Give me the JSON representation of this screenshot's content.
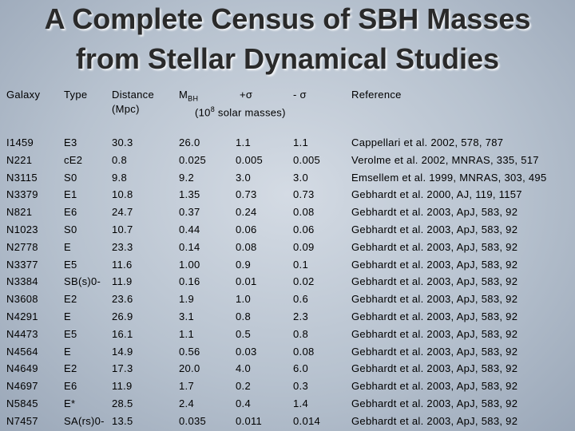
{
  "title": {
    "line1": "A Complete Census of SBH Masses",
    "line2": "from Stellar Dynamical Studies"
  },
  "header": {
    "galaxy": "Galaxy",
    "type": "Type",
    "distance": "Distance",
    "distance_unit": "(Mpc)",
    "mass": "M",
    "mass_sub": "BH",
    "plus_sigma": "+σ",
    "minus_sigma": "- σ",
    "unit_open": "(10",
    "unit_exp": "8",
    "unit_rest": " solar masses)",
    "reference": "Reference"
  },
  "table": {
    "rows": [
      [
        "I1459",
        "E3",
        "30.3",
        "26.0",
        "1.1",
        "1.1",
        "Cappellari et al. 2002, 578, 787"
      ],
      [
        "N221",
        "cE2",
        "0.8",
        "0.025",
        "0.005",
        "0.005",
        "Verolme et al. 2002, MNRAS, 335, 517"
      ],
      [
        "N3115",
        "S0",
        "9.8",
        "9.2",
        "3.0",
        "3.0",
        "Emsellem et al. 1999, MNRAS, 303, 495"
      ],
      [
        "N3379",
        "E1",
        "10.8",
        "1.35",
        "0.73",
        "0.73",
        "Gebhardt et al. 2000, AJ, 119, 1157"
      ],
      [
        "N821",
        "E6",
        "24.7",
        "0.37",
        "0.24",
        "0.08",
        "Gebhardt et al. 2003, ApJ, 583, 92"
      ],
      [
        "N1023",
        "S0",
        "10.7",
        "0.44",
        "0.06",
        "0.06",
        "Gebhardt et al. 2003, ApJ, 583, 92"
      ],
      [
        "N2778",
        "E",
        "23.3",
        "0.14",
        "0.08",
        "0.09",
        "Gebhardt et al. 2003, ApJ, 583, 92"
      ],
      [
        "N3377",
        "E5",
        "11.6",
        "1.00",
        "0.9",
        "0.1",
        "Gebhardt et al. 2003, ApJ, 583, 92"
      ],
      [
        "N3384",
        "SB(s)0-",
        "11.9",
        "0.16",
        "0.01",
        "0.02",
        "Gebhardt et al. 2003, ApJ, 583, 92"
      ],
      [
        "N3608",
        "E2",
        "23.6",
        "1.9",
        "1.0",
        "0.6",
        "Gebhardt et al. 2003, ApJ, 583, 92"
      ],
      [
        "N4291",
        "E",
        "26.9",
        "3.1",
        "0.8",
        "2.3",
        "Gebhardt et al. 2003, ApJ, 583, 92"
      ],
      [
        "N4473",
        "E5",
        "16.1",
        "1.1",
        "0.5",
        "0.8",
        "Gebhardt et al. 2003, ApJ, 583, 92"
      ],
      [
        "N4564",
        "E",
        "14.9",
        "0.56",
        "0.03",
        "0.08",
        "Gebhardt et al. 2003, ApJ, 583, 92"
      ],
      [
        "N4649",
        "E2",
        "17.3",
        "20.0",
        "4.0",
        "6.0",
        "Gebhardt et al. 2003, ApJ, 583, 92"
      ],
      [
        "N4697",
        "E6",
        "11.9",
        "1.7",
        "0.2",
        "0.3",
        "Gebhardt et al. 2003, ApJ, 583, 92"
      ],
      [
        "N5845",
        "E*",
        "28.5",
        "2.4",
        "0.4",
        "1.4",
        "Gebhardt et al. 2003, ApJ, 583, 92"
      ],
      [
        "N7457",
        "SA(rs)0-",
        "13.5",
        "0.035",
        "0.011",
        "0.014",
        "Gebhardt et al. 2003, ApJ, 583, 92"
      ]
    ]
  }
}
